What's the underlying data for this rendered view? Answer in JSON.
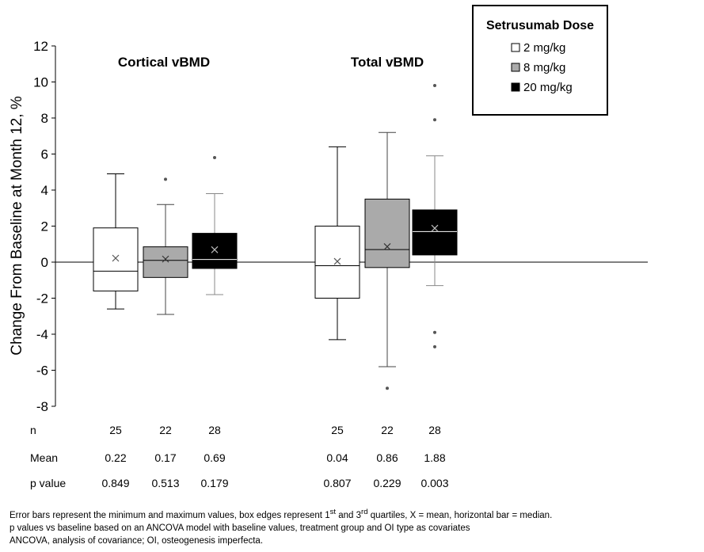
{
  "chart_data": {
    "type": "boxplot",
    "ylabel": "Change From Baseline at Month 12, %",
    "ylim": [
      -8,
      12
    ],
    "yticks": [
      "-8",
      "-6",
      "-4",
      "-2",
      "0",
      "2",
      "4",
      "6",
      "8",
      "10",
      "12"
    ],
    "legend": {
      "title": "Setrusumab Dose",
      "placement": "top-right",
      "entries": [
        {
          "label": "2 mg/kg",
          "color": "#ffffff"
        },
        {
          "label": "8 mg/kg",
          "color": "#aaaaaa"
        },
        {
          "label": "20 mg/kg",
          "color": "#000000"
        }
      ]
    },
    "groups": [
      {
        "title": "Cortical vBMD",
        "boxes": [
          {
            "dose": "2 mg/kg",
            "min": -2.6,
            "q1": -1.6,
            "median": -0.5,
            "q3": 1.9,
            "max": 4.9,
            "mean": 0.22,
            "outliers": []
          },
          {
            "dose": "8 mg/kg",
            "min": -2.9,
            "q1": -0.85,
            "median": 0.1,
            "q3": 0.85,
            "max": 3.2,
            "mean": 0.17,
            "outliers": [
              4.6
            ]
          },
          {
            "dose": "20 mg/kg",
            "min": -1.8,
            "q1": -0.35,
            "median": 0.15,
            "q3": 1.6,
            "max": 3.8,
            "mean": 0.69,
            "outliers": [
              5.8
            ]
          }
        ]
      },
      {
        "title": "Total vBMD",
        "boxes": [
          {
            "dose": "2 mg/kg",
            "min": -4.3,
            "q1": -2.0,
            "median": -0.2,
            "q3": 2.0,
            "max": 6.4,
            "mean": 0.04,
            "outliers": []
          },
          {
            "dose": "8 mg/kg",
            "min": -5.8,
            "q1": -0.3,
            "median": 0.7,
            "q3": 3.5,
            "max": 7.2,
            "mean": 0.86,
            "outliers": [
              -7.0
            ]
          },
          {
            "dose": "20 mg/kg",
            "min": -1.3,
            "q1": 0.4,
            "median": 1.7,
            "q3": 2.9,
            "max": 5.9,
            "mean": 1.88,
            "outliers": [
              9.8,
              7.9,
              -3.9,
              -4.7
            ]
          }
        ]
      }
    ],
    "table": {
      "rows": [
        {
          "label": "n",
          "values": [
            "25",
            "22",
            "28",
            "25",
            "22",
            "28"
          ]
        },
        {
          "label": "Mean",
          "values": [
            "0.22",
            "0.17",
            "0.69",
            "0.04",
            "0.86",
            "1.88"
          ]
        },
        {
          "label": "p value",
          "values": [
            "0.849",
            "0.513",
            "0.179",
            "0.807",
            "0.229",
            "0.003"
          ]
        }
      ]
    }
  },
  "footnotes": {
    "line1": {
      "a": "Error bars represent the minimum and maximum values, box edges represent 1",
      "sup1": "st",
      "b": " and 3",
      "sup2": "rd",
      "c": " quartiles, X = mean, horizontal bar = median."
    },
    "line2": "p values vs baseline based on an ANCOVA model with baseline values, treatment group and OI type as covariates",
    "line3": "ANCOVA, analysis of covariance; OI, osteogenesis imperfecta."
  }
}
